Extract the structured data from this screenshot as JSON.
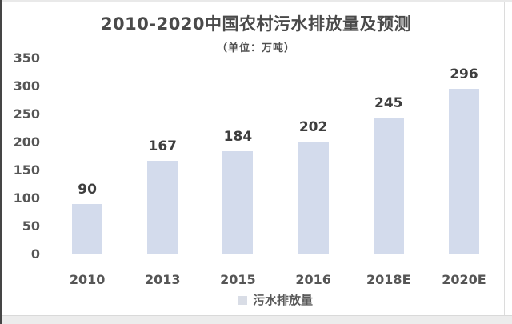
{
  "page": {
    "background": "#ffffff"
  },
  "chart_data": {
    "type": "bar",
    "title": "2010-2020中国农村污水排放量及预测",
    "subtitle": "（单位：万吨）",
    "categories": [
      "2010",
      "2013",
      "2015",
      "2016",
      "2018E",
      "2020E"
    ],
    "values": [
      90,
      167,
      184,
      202,
      245,
      296
    ],
    "series_name": "污水排放量",
    "xlabel": "",
    "ylabel": "",
    "ylim": [
      0,
      350
    ],
    "yticks": [
      0,
      50,
      100,
      150,
      200,
      250,
      300,
      350
    ],
    "grid": "horizontal",
    "legend_position": "bottom-center",
    "colors": {
      "bar_fill": "#d3dbec",
      "legend_marker": "#d9dde6",
      "title_text": "#4a4a4a",
      "data_label_text": "#3e3e3e",
      "axis_tick_text": "#565656",
      "gridline": "#e4e4e4"
    }
  }
}
